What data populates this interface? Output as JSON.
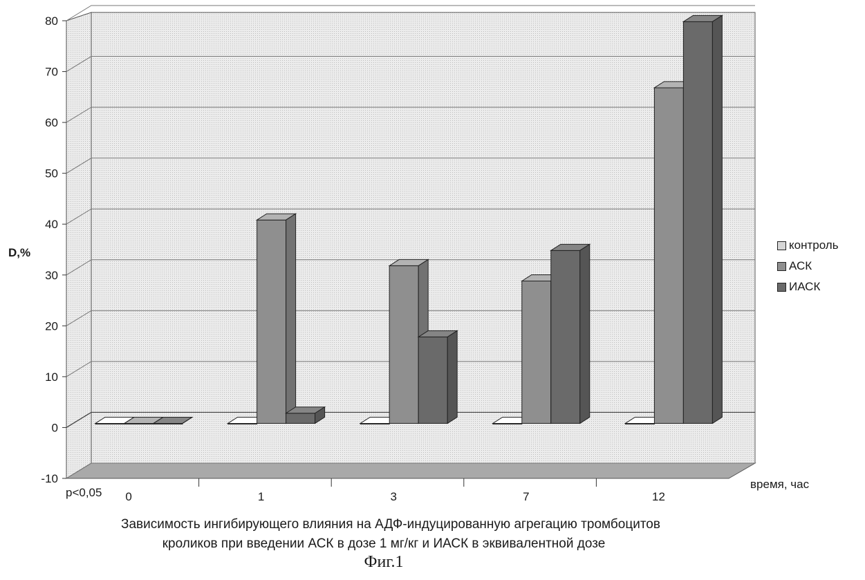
{
  "chart_data": {
    "type": "bar",
    "categories": [
      "0",
      "1",
      "3",
      "7",
      "12"
    ],
    "series": [
      {
        "name": "контроль",
        "values": [
          0,
          0,
          0,
          0,
          0
        ],
        "color": "#d6d6d6"
      },
      {
        "name": "АСК",
        "values": [
          0,
          40,
          31,
          28,
          66
        ],
        "color": "#8f8f8f"
      },
      {
        "name": "ИАСК",
        "values": [
          0,
          2,
          17,
          34,
          79
        ],
        "color": "#6a6a6a"
      }
    ],
    "ylabel": "D,%",
    "xlabel": "время, час",
    "ylim": [
      -10,
      80
    ],
    "yticks": [
      "-10",
      "0",
      "10",
      "20",
      "30",
      "40",
      "50",
      "60",
      "70",
      "80"
    ],
    "grid": true,
    "legend_position": "right",
    "annotation": "p<0,05",
    "caption_line1": "Зависимость ингибирующего влияния на АДФ-индуцированную агрегацию тромбоцитов",
    "caption_line2": "кроликов  при введении АСК в дозе 1 мг/кг и ИАСК в эквивалентной дозе",
    "figure_label": "Фиг.1"
  }
}
